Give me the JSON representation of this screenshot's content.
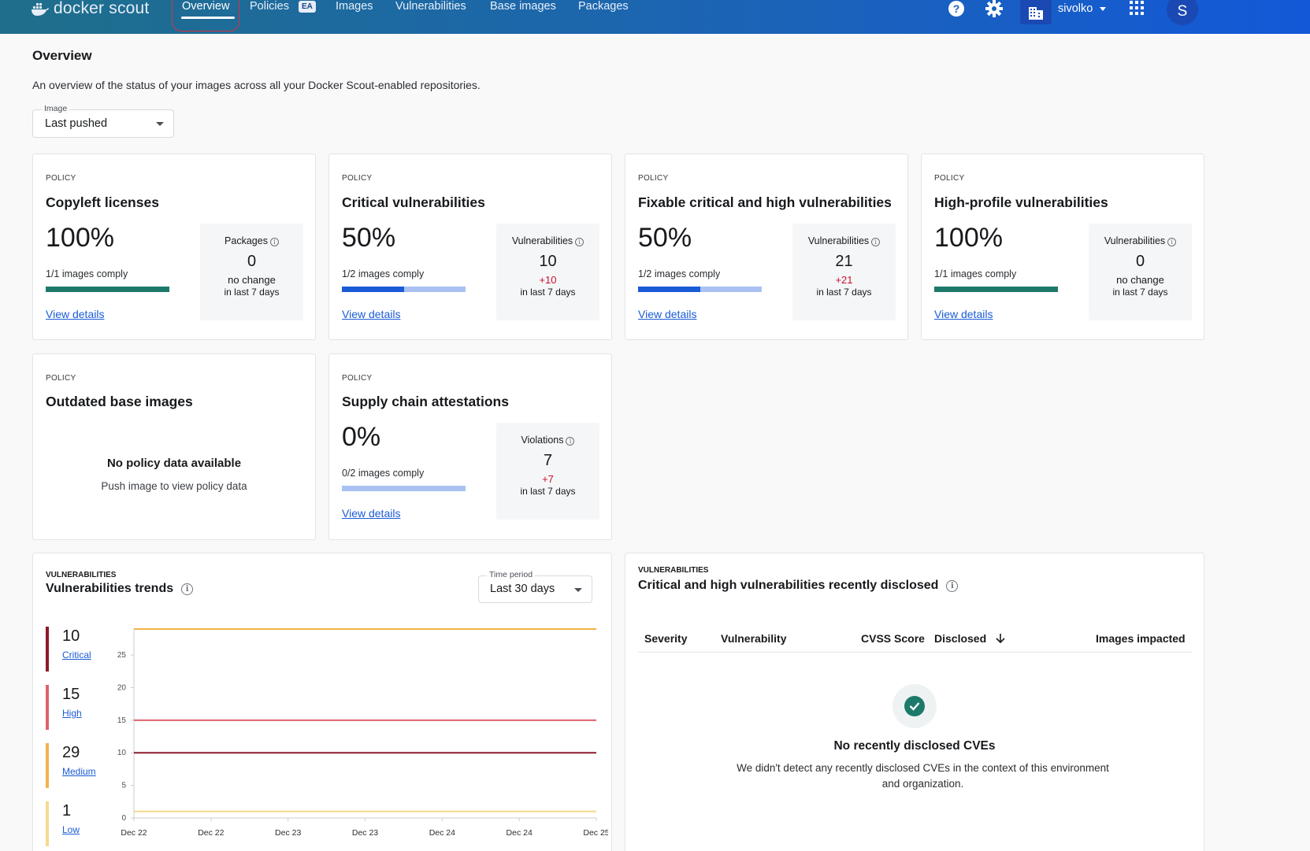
{
  "topbar": {
    "brand": "docker scout",
    "tabs": [
      {
        "label": "Overview"
      },
      {
        "label": "Policies",
        "badge": "EA"
      },
      {
        "label": "Images"
      },
      {
        "label": "Vulnerabilities"
      },
      {
        "label": "Base images"
      },
      {
        "label": "Packages"
      }
    ],
    "icons": [
      "help-icon",
      "gear-icon",
      "organization-icon",
      "apps-grid-icon"
    ],
    "org_name": "sivolko",
    "avatar_initial": "S"
  },
  "header": {
    "title": "Overview",
    "subtitle": "An overview of the status of your images across all your Docker Scout-enabled repositories.",
    "image_select": {
      "label": "Image",
      "value": "Last pushed"
    }
  },
  "policy_cards": [
    {
      "eyebrow": "POLICY",
      "title": "Copyleft licenses",
      "percent": "100%",
      "comply": "1/1 images comply",
      "comply_fraction": 1.0,
      "bar_color": "#1d7a6a",
      "link": "View details",
      "metric_label": "Packages",
      "metric_value": "0",
      "change": "no change",
      "period": "in last 7 days"
    },
    {
      "eyebrow": "POLICY",
      "title": "Critical vulnerabilities",
      "percent": "50%",
      "comply": "1/2 images comply",
      "comply_fraction": 0.5,
      "bar_color": "#1a5bd6",
      "link": "View details",
      "metric_label": "Vulnerabilities",
      "metric_value": "10",
      "change": "+10",
      "period": "in last 7 days"
    },
    {
      "eyebrow": "POLICY",
      "title": "Fixable critical and high vulnerabilities",
      "percent": "50%",
      "comply": "1/2 images comply",
      "comply_fraction": 0.5,
      "bar_color": "#1a5bd6",
      "link": "View details",
      "metric_label": "Vulnerabilities",
      "metric_value": "21",
      "change": "+21",
      "period": "in last 7 days"
    },
    {
      "eyebrow": "POLICY",
      "title": "High-profile vulnerabilities",
      "percent": "100%",
      "comply": "1/1 images comply",
      "comply_fraction": 1.0,
      "bar_color": "#1d7a6a",
      "link": "View details",
      "metric_label": "Vulnerabilities",
      "metric_value": "0",
      "change": "no change",
      "period": "in last 7 days"
    },
    {
      "eyebrow": "POLICY",
      "title": "Outdated base images",
      "empty_title": "No policy data available",
      "empty_text": "Push image to view policy data"
    },
    {
      "eyebrow": "POLICY",
      "title": "Supply chain attestations",
      "percent": "0%",
      "comply": "0/2 images comply",
      "comply_fraction": 0.0,
      "bar_color": "#1a5bd6",
      "link": "View details",
      "metric_label": "Violations",
      "metric_value": "7",
      "change": "+7",
      "period": "in last 7 days"
    }
  ],
  "trends": {
    "eyebrow": "VULNERABILITIES",
    "title": "Vulnerabilities trends",
    "time_period": {
      "label": "Time period",
      "value": "Last 30 days"
    },
    "legend": [
      {
        "count": "10",
        "name": "Critical",
        "color": "#8b1a2b"
      },
      {
        "count": "15",
        "name": "High",
        "color": "#e0606e"
      },
      {
        "count": "29",
        "name": "Medium",
        "color": "#f2b24b"
      },
      {
        "count": "1",
        "name": "Low",
        "color": "#f7d98f"
      }
    ]
  },
  "chart_data": {
    "type": "line",
    "x": [
      "Dec 22",
      "Dec 22",
      "Dec 23",
      "Dec 23",
      "Dec 24",
      "Dec 24",
      "Dec 25"
    ],
    "ylim": [
      0,
      29
    ],
    "yticks": [
      0,
      5,
      10,
      15,
      20,
      25
    ],
    "series": [
      {
        "name": "Critical",
        "color": "#8b1a2b",
        "values": [
          10,
          10,
          10,
          10,
          10,
          10,
          10
        ]
      },
      {
        "name": "High",
        "color": "#e0606e",
        "values": [
          15,
          15,
          15,
          15,
          15,
          15,
          15
        ]
      },
      {
        "name": "Medium",
        "color": "#f2b24b",
        "values": [
          29,
          29,
          29,
          29,
          29,
          29,
          29
        ]
      },
      {
        "name": "Low",
        "color": "#f7d98f",
        "values": [
          1,
          1,
          1,
          1,
          1,
          1,
          1
        ]
      }
    ]
  },
  "recent": {
    "eyebrow": "VULNERABILITIES",
    "title": "Critical and high vulnerabilities recently disclosed",
    "columns": [
      "Severity",
      "Vulnerability",
      "CVSS Score",
      "Disclosed",
      "Images impacted"
    ],
    "empty_title": "No recently disclosed CVEs",
    "empty_text": "We didn't detect any recently disclosed CVEs in the context of this environment and organization."
  }
}
